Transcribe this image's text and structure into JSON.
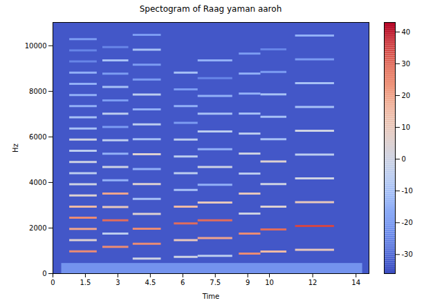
{
  "chart_data": {
    "type": "heatmap",
    "title": "Spectogram of Raag yaman aaroh",
    "x_label": "Time",
    "y_label": "Hz",
    "xlim": [
      0,
      14.6
    ],
    "xticks": [
      0,
      1.5,
      3,
      4.5,
      6,
      7.5,
      9,
      10,
      12,
      14
    ],
    "ylim": [
      0,
      11025
    ],
    "yticks": [
      0,
      2000,
      4000,
      6000,
      8000,
      10000
    ],
    "floor_db": -34,
    "low_band": {
      "start": 0.4,
      "end": 14.3,
      "freq_range": [
        0,
        450
      ],
      "db": -22
    },
    "notes": [
      {
        "start": 0.77,
        "end": 2.04,
        "harmonics": [
          980,
          1470,
          1960,
          2450,
          2940,
          3430,
          3920,
          4410,
          4900,
          5390,
          5880,
          6370,
          6860,
          7350,
          7840,
          8330,
          8820,
          9310,
          9800,
          10290
        ],
        "db": [
          25,
          5,
          20,
          25,
          15,
          5,
          0,
          -5,
          0,
          -5,
          0,
          -10,
          -10,
          -15,
          -15,
          -15,
          -15,
          -25,
          -25,
          -20
        ]
      },
      {
        "start": 2.3,
        "end": 3.5,
        "harmonics": [
          1170,
          1755,
          2340,
          2925,
          3510,
          4095,
          4680,
          5265,
          5850,
          6435,
          7020,
          7605,
          8190,
          8775,
          9360,
          9945
        ],
        "db": [
          25,
          -5,
          30,
          10,
          20,
          -15,
          0,
          -15,
          -5,
          -20,
          -5,
          -20,
          -10,
          -20,
          -10,
          -25
        ]
      },
      {
        "start": 3.7,
        "end": 5.0,
        "harmonics": [
          655,
          1310,
          1965,
          2620,
          3275,
          3930,
          4585,
          5240,
          5895,
          6550,
          7205,
          7860,
          8515,
          9170,
          9825,
          10480
        ],
        "db": [
          0,
          25,
          25,
          5,
          -10,
          5,
          -15,
          5,
          -10,
          -5,
          -15,
          -5,
          -20,
          -20,
          -10,
          -20
        ]
      },
      {
        "start": 5.6,
        "end": 6.7,
        "harmonics": [
          735,
          1470,
          2205,
          2940,
          3675,
          4410,
          5145,
          5880,
          6615,
          7350,
          8085,
          8820
        ],
        "db": [
          0,
          10,
          30,
          15,
          -10,
          -5,
          -5,
          -5,
          -20,
          -15,
          -20,
          -10
        ]
      },
      {
        "start": 6.7,
        "end": 8.3,
        "harmonics": [
          780,
          1560,
          2340,
          3120,
          3900,
          4680,
          5460,
          6240,
          7020,
          7800,
          8580,
          9360
        ],
        "db": [
          -5,
          20,
          30,
          10,
          -15,
          0,
          -15,
          -5,
          -10,
          -15,
          -25,
          -15
        ]
      },
      {
        "start": 8.6,
        "end": 9.6,
        "harmonics": [
          878,
          1756,
          2634,
          3512,
          4390,
          5268,
          6146,
          7024,
          7902,
          8780,
          9658
        ],
        "db": [
          25,
          25,
          0,
          10,
          -5,
          0,
          -5,
          -10,
          -15,
          -15,
          -20
        ]
      },
      {
        "start": 9.6,
        "end": 10.8,
        "harmonics": [
          970,
          1940,
          2940,
          3930,
          4920,
          5900,
          6880,
          7870,
          8850,
          9840
        ],
        "db": [
          15,
          30,
          5,
          0,
          5,
          -10,
          -10,
          -10,
          -20,
          -25
        ]
      },
      {
        "start": 11.2,
        "end": 13.0,
        "harmonics": [
          1045,
          2090,
          3135,
          4180,
          5225,
          6270,
          7315,
          8360,
          9405,
          10450
        ],
        "db": [
          10,
          35,
          10,
          0,
          -5,
          0,
          -10,
          -10,
          -20,
          -15
        ]
      }
    ],
    "colorbar": {
      "range": [
        -36,
        43
      ],
      "ticks": [
        -30,
        -20,
        -10,
        0,
        10,
        20,
        30,
        40
      ]
    }
  }
}
